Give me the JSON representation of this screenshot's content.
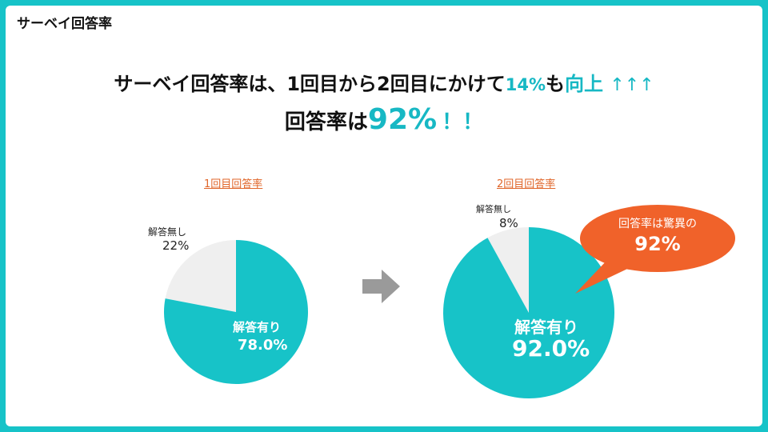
{
  "page_title": "サーベイ回答率",
  "headline": {
    "line1_part1": "サーベイ回答率は、1回目から2回目にかけて",
    "line1_highlight": "14%",
    "line1_part2": "も",
    "line1_highlight2": "向上",
    "line1_arrows": "↑↑↑",
    "line2_part1": "回答率は",
    "line2_highlight": "92%",
    "line2_bang": "！！"
  },
  "callout": {
    "line1": "回答率は驚異の",
    "line2": "92%"
  },
  "colors": {
    "primary": "#17c3c8",
    "secondary": "#efefef",
    "accent": "#e0662a",
    "callout": "#f0622a",
    "arrow": "#9a9a9a"
  },
  "transition_icon": "right-arrow-icon",
  "chart_data": [
    {
      "type": "pie",
      "title": "1回目回答率",
      "slices": [
        {
          "label": "解答無し",
          "value": 22,
          "display": "22%"
        },
        {
          "label": "解答有り",
          "value": 78,
          "display": "78.0%"
        }
      ]
    },
    {
      "type": "pie",
      "title": "2回目回答率",
      "slices": [
        {
          "label": "解答無し",
          "value": 8,
          "display": "8%"
        },
        {
          "label": "解答有り",
          "value": 92,
          "display": "92.0%"
        }
      ]
    }
  ]
}
